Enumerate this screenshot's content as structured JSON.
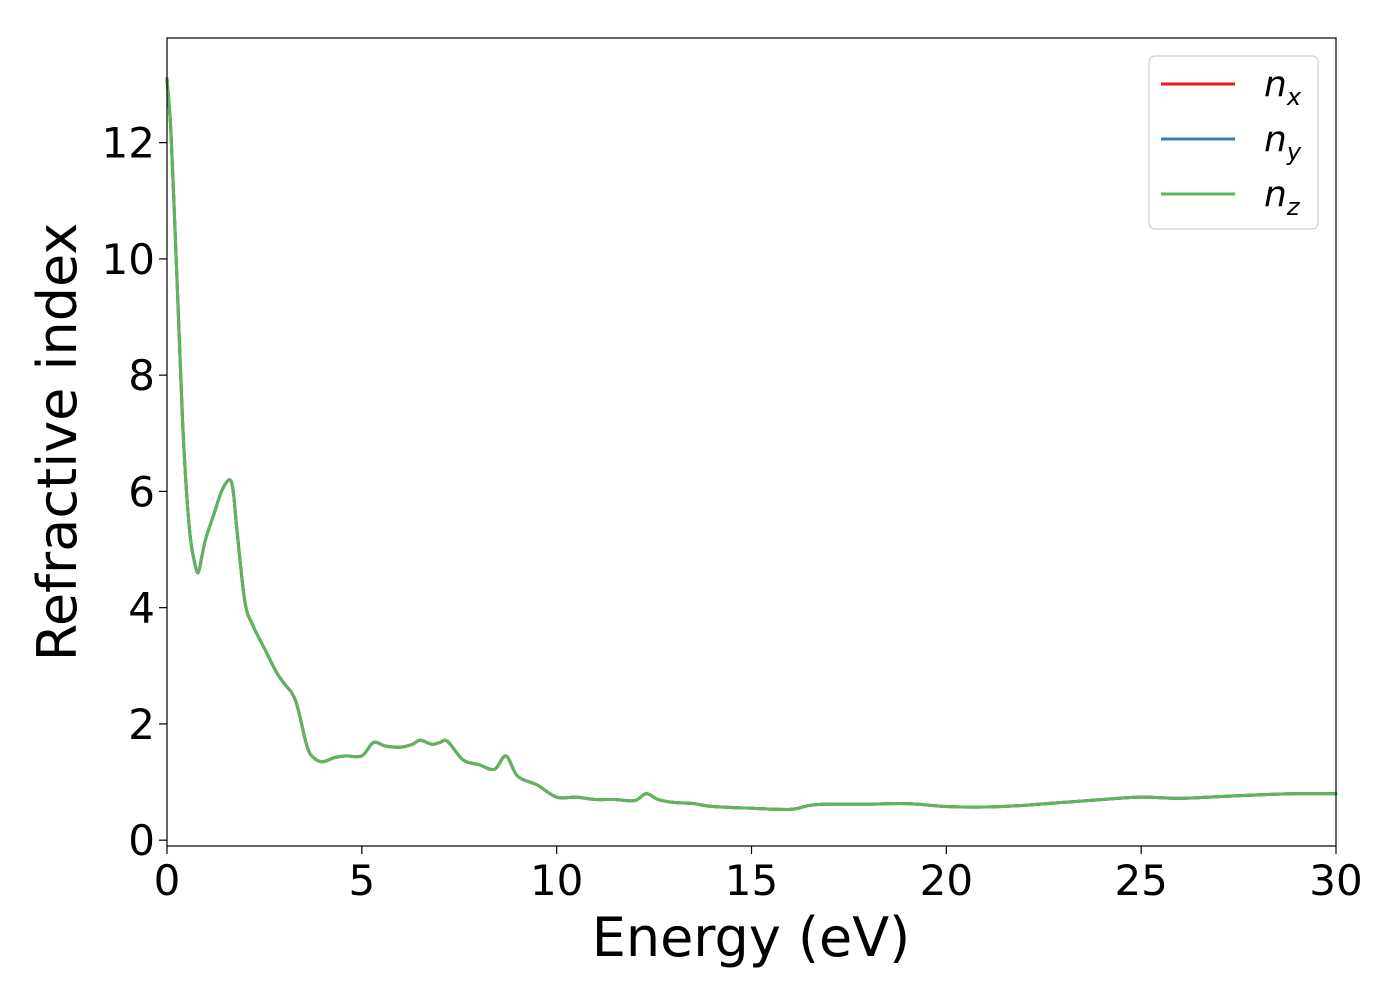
{
  "chart_data": {
    "type": "line",
    "title": "",
    "xlabel": "Energy (eV)",
    "ylabel": "Refractive index",
    "xlim": [
      0,
      30
    ],
    "ylim": [
      -0.1,
      13.8
    ],
    "xticks": [
      0,
      5,
      10,
      15,
      20,
      25,
      30
    ],
    "xtick_labels": [
      "0",
      "5",
      "10",
      "15",
      "20",
      "25",
      "30"
    ],
    "yticks": [
      0,
      2,
      4,
      6,
      8,
      10,
      12
    ],
    "ytick_labels": [
      "0",
      "2",
      "4",
      "6",
      "8",
      "10",
      "12"
    ],
    "grid": false,
    "legend_position": "top-right",
    "x": [
      0.0,
      0.1,
      0.2,
      0.3,
      0.4,
      0.5,
      0.6,
      0.7,
      0.8,
      0.9,
      1.0,
      1.2,
      1.4,
      1.6,
      1.7,
      1.8,
      2.0,
      2.2,
      2.5,
      2.8,
      3.0,
      3.3,
      3.6,
      3.8,
      4.0,
      4.3,
      4.6,
      5.0,
      5.3,
      5.6,
      6.0,
      6.3,
      6.5,
      6.8,
      7.0,
      7.2,
      7.6,
      8.0,
      8.4,
      8.7,
      9.0,
      9.5,
      10.0,
      10.5,
      11.0,
      11.5,
      12.0,
      12.3,
      12.6,
      13.0,
      13.5,
      14.0,
      15.0,
      16.0,
      16.5,
      17.0,
      18.0,
      19.0,
      20.0,
      21.0,
      22.0,
      23.0,
      24.0,
      25.0,
      26.0,
      27.0,
      28.0,
      29.0,
      30.0
    ],
    "series": [
      {
        "name": "n_x",
        "label_main": "n",
        "label_sub": "x",
        "color": "#e41a1c",
        "values": [
          13.1,
          12.2,
          10.6,
          8.9,
          7.2,
          6.0,
          5.2,
          4.8,
          4.6,
          4.9,
          5.2,
          5.6,
          6.0,
          6.2,
          6.0,
          5.3,
          4.1,
          3.7,
          3.3,
          2.9,
          2.7,
          2.4,
          1.6,
          1.4,
          1.35,
          1.42,
          1.45,
          1.45,
          1.68,
          1.62,
          1.6,
          1.65,
          1.72,
          1.65,
          1.68,
          1.7,
          1.38,
          1.3,
          1.22,
          1.45,
          1.1,
          0.95,
          0.74,
          0.74,
          0.7,
          0.7,
          0.68,
          0.8,
          0.7,
          0.65,
          0.63,
          0.58,
          0.55,
          0.53,
          0.6,
          0.62,
          0.62,
          0.63,
          0.58,
          0.57,
          0.6,
          0.65,
          0.7,
          0.74,
          0.72,
          0.75,
          0.78,
          0.8,
          0.8
        ]
      },
      {
        "name": "n_y",
        "label_main": "n",
        "label_sub": "y",
        "color": "#377eb8",
        "values": [
          13.1,
          12.2,
          10.6,
          8.9,
          7.2,
          6.0,
          5.2,
          4.8,
          4.6,
          4.9,
          5.2,
          5.6,
          6.0,
          6.2,
          6.0,
          5.3,
          4.1,
          3.7,
          3.3,
          2.9,
          2.7,
          2.4,
          1.6,
          1.4,
          1.35,
          1.42,
          1.45,
          1.45,
          1.68,
          1.62,
          1.6,
          1.65,
          1.72,
          1.65,
          1.68,
          1.7,
          1.38,
          1.3,
          1.22,
          1.45,
          1.1,
          0.95,
          0.74,
          0.74,
          0.7,
          0.7,
          0.68,
          0.8,
          0.7,
          0.65,
          0.63,
          0.58,
          0.55,
          0.53,
          0.6,
          0.62,
          0.62,
          0.63,
          0.58,
          0.57,
          0.6,
          0.65,
          0.7,
          0.74,
          0.72,
          0.75,
          0.78,
          0.8,
          0.8
        ]
      },
      {
        "name": "n_z",
        "label_main": "n",
        "label_sub": "z",
        "color": "#5fb55a",
        "values": [
          13.1,
          12.2,
          10.6,
          8.9,
          7.2,
          6.0,
          5.2,
          4.8,
          4.6,
          4.9,
          5.2,
          5.6,
          6.0,
          6.2,
          6.0,
          5.3,
          4.1,
          3.7,
          3.3,
          2.9,
          2.7,
          2.4,
          1.6,
          1.4,
          1.35,
          1.42,
          1.45,
          1.45,
          1.68,
          1.62,
          1.6,
          1.65,
          1.72,
          1.65,
          1.68,
          1.7,
          1.38,
          1.3,
          1.22,
          1.45,
          1.1,
          0.95,
          0.74,
          0.74,
          0.7,
          0.7,
          0.68,
          0.8,
          0.7,
          0.65,
          0.63,
          0.58,
          0.55,
          0.53,
          0.6,
          0.62,
          0.62,
          0.63,
          0.58,
          0.57,
          0.6,
          0.65,
          0.7,
          0.74,
          0.72,
          0.75,
          0.78,
          0.8,
          0.8
        ]
      }
    ]
  }
}
